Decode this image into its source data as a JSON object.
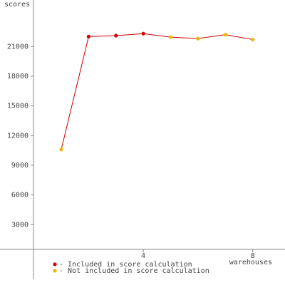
{
  "chart_data": {
    "type": "line",
    "y_label": "scores",
    "x_label": "warehouses",
    "x": [
      1,
      2,
      3,
      4,
      5,
      6,
      7,
      8
    ],
    "values": [
      10600,
      22000,
      22100,
      22300,
      21950,
      21800,
      22200,
      21700
    ],
    "included": [
      false,
      true,
      true,
      true,
      false,
      false,
      false,
      false
    ],
    "line_color": "#cc0000",
    "legend": [
      {
        "name": "- Included in score calculation",
        "color": "#dd0000"
      },
      {
        "name": "- Not included in score calculation",
        "color": "#f0b800"
      }
    ],
    "xlim": [
      -1.24,
      9.18
    ],
    "xticks": [
      4,
      8
    ],
    "ylim": [
      -3100,
      25700
    ],
    "yticks": [
      3000,
      6000,
      9000,
      12000,
      15000,
      18000,
      21000
    ]
  }
}
